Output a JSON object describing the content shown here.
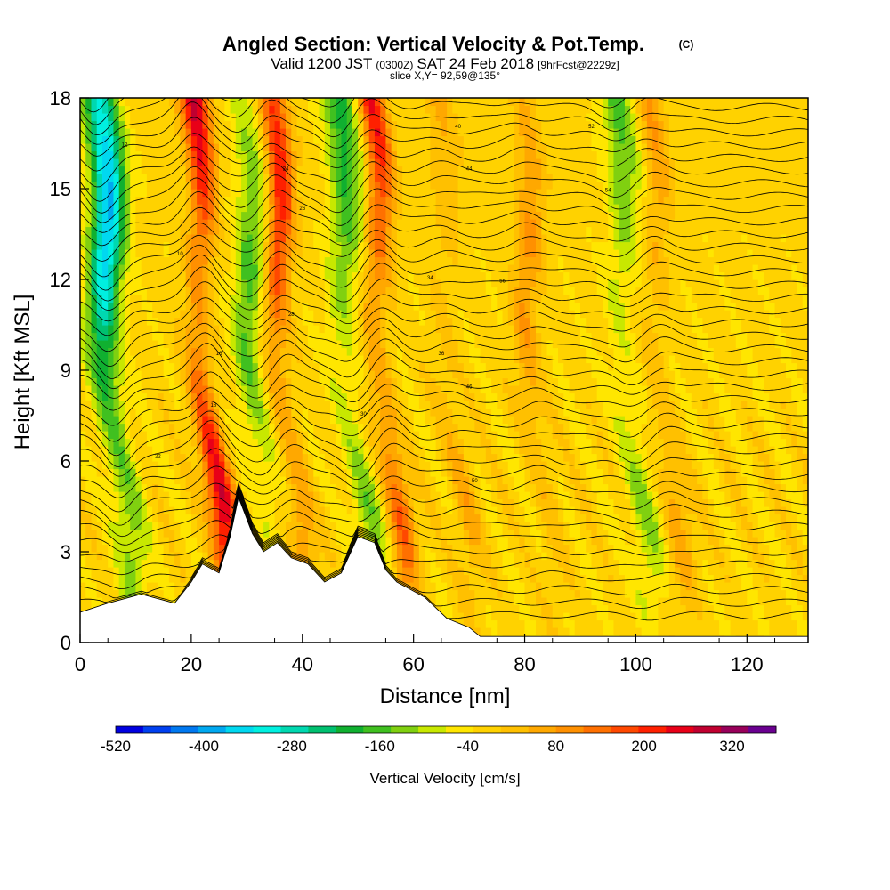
{
  "chart_data": {
    "type": "heatmap",
    "title": "Angled Section: Vertical Velocity & Pot.Temp.",
    "title_mark": "(C)",
    "subtitle": {
      "valid_prefix": "Valid 1200 JST",
      "zulu": "(0300Z)",
      "date": "SAT 24 Feb 2018",
      "forecast": "[9hrFcst@2229z]"
    },
    "slice_label": "slice X,Y= 92,59@135°",
    "xlabel": "Distance [nm]",
    "ylabel": "Height [Kft MSL]",
    "xlim": [
      0,
      131
    ],
    "ylim": [
      0,
      18
    ],
    "x_ticks": [
      0,
      20,
      40,
      60,
      80,
      100,
      120
    ],
    "y_ticks": [
      0,
      3,
      6,
      9,
      12,
      15,
      18
    ],
    "colorbar": {
      "title": "Vertical Velocity [cm/s]",
      "min": -520,
      "max": 380,
      "step": 40,
      "tick_labels": [
        -520,
        -400,
        -280,
        -160,
        -40,
        80,
        200,
        320
      ],
      "colors": [
        "#0000e0",
        "#0040f0",
        "#0078f0",
        "#00a8f0",
        "#00d8f0",
        "#00f0e0",
        "#00d8b0",
        "#00c070",
        "#10b030",
        "#40c020",
        "#80d010",
        "#c8e800",
        "#ffe600",
        "#ffd200",
        "#ffc000",
        "#ffa800",
        "#ff9000",
        "#ff7000",
        "#ff4800",
        "#ff2000",
        "#e80018",
        "#c00030",
        "#98005a",
        "#6a0090"
      ]
    },
    "terrain_kft": [
      [
        0,
        1.0
      ],
      [
        5,
        1.3
      ],
      [
        11,
        1.6
      ],
      [
        17,
        1.3
      ],
      [
        20,
        2.0
      ],
      [
        22,
        2.6
      ],
      [
        25,
        2.3
      ],
      [
        27,
        3.5
      ],
      [
        28.5,
        4.8
      ],
      [
        31,
        3.6
      ],
      [
        33,
        3.0
      ],
      [
        35.5,
        3.3
      ],
      [
        38,
        2.8
      ],
      [
        41,
        2.6
      ],
      [
        44,
        2.0
      ],
      [
        47,
        2.3
      ],
      [
        50,
        3.5
      ],
      [
        53,
        3.3
      ],
      [
        55,
        2.4
      ],
      [
        57,
        2.0
      ],
      [
        59,
        1.8
      ],
      [
        62,
        1.5
      ],
      [
        66,
        0.8
      ],
      [
        70,
        0.5
      ],
      [
        72,
        0.2
      ],
      [
        131,
        0.2
      ]
    ],
    "velocity_features": [
      {
        "center_nm": 9,
        "min_cm_s": -380,
        "kind": "down"
      },
      {
        "center_nm": 26,
        "max_cm_s": 380,
        "kind": "up"
      },
      {
        "center_nm": 35,
        "min_cm_s": -150,
        "kind": "down"
      },
      {
        "center_nm": 40,
        "max_cm_s": 260,
        "kind": "up"
      },
      {
        "center_nm": 52,
        "min_cm_s": -200,
        "kind": "down"
      },
      {
        "center_nm": 58,
        "max_cm_s": 270,
        "kind": "up"
      },
      {
        "center_nm": 70,
        "max_cm_s": 90,
        "kind": "up"
      },
      {
        "center_nm": 85,
        "max_cm_s": 110,
        "kind": "up"
      },
      {
        "center_nm": 102,
        "min_cm_s": -150,
        "kind": "down"
      },
      {
        "center_nm": 108,
        "max_cm_s": 120,
        "kind": "up"
      }
    ],
    "contour_labels": [
      "12",
      "10",
      "16",
      "18",
      "22",
      "24",
      "26",
      "28",
      "30",
      "34",
      "36",
      "40",
      "44",
      "46",
      "50",
      "52",
      "54",
      "56"
    ]
  }
}
